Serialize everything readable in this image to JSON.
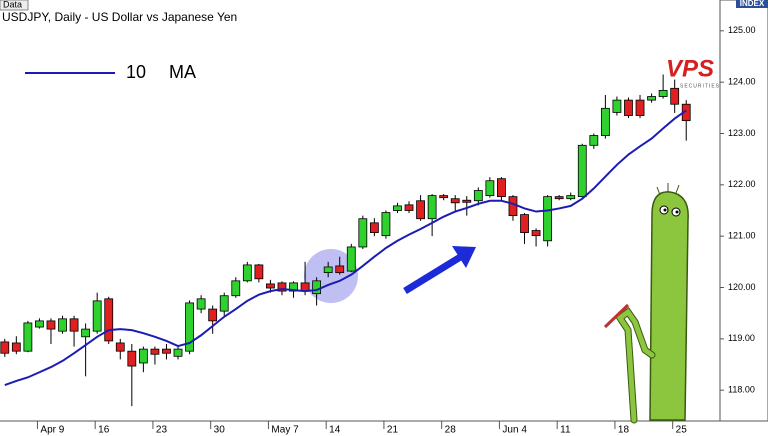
{
  "chart_data": {
    "type": "candlestick",
    "label": "Data",
    "title": "USDJPY, Daily - US Dollar vs Japanese Yen",
    "axis_label": "INDEX",
    "categories": [
      null,
      null,
      null,
      "Apr 9",
      null,
      null,
      null,
      null,
      "16",
      null,
      null,
      null,
      null,
      "23",
      null,
      null,
      null,
      null,
      "30",
      null,
      null,
      null,
      null,
      "May 7",
      null,
      null,
      null,
      null,
      "14",
      null,
      null,
      null,
      null,
      "21",
      null,
      null,
      null,
      null,
      "28",
      null,
      null,
      null,
      null,
      "Jun 4",
      null,
      null,
      null,
      null,
      "11",
      null,
      null,
      null,
      null,
      "18",
      null,
      null,
      null,
      null,
      "25",
      null
    ],
    "open": [
      118.94,
      118.92,
      118.76,
      119.23,
      119.35,
      119.15,
      119.39,
      119.04,
      119.15,
      119.78,
      118.92,
      118.76,
      118.53,
      118.8,
      118.8,
      118.66,
      118.76,
      119.58,
      119.58,
      119.54,
      119.84,
      120.13,
      120.44,
      120.07,
      120.09,
      119.93,
      120.09,
      119.88,
      120.29,
      120.42,
      120.32,
      120.79,
      121.26,
      121.01,
      121.5,
      121.61,
      121.69,
      121.34,
      121.79,
      121.73,
      121.7,
      121.69,
      121.79,
      122.12,
      121.77,
      121.42,
      121.11,
      120.91,
      121.77,
      121.73,
      121.77,
      122.77,
      122.96,
      123.41,
      123.65,
      123.65,
      123.65,
      123.72,
      123.88,
      123.57
    ],
    "high": [
      119.0,
      119.05,
      119.35,
      119.4,
      119.4,
      119.45,
      119.45,
      119.3,
      119.9,
      119.82,
      119.0,
      118.9,
      118.85,
      118.85,
      118.9,
      118.85,
      119.75,
      119.85,
      119.65,
      119.9,
      120.2,
      120.5,
      120.46,
      120.15,
      120.12,
      120.12,
      120.5,
      120.2,
      120.5,
      120.6,
      120.85,
      121.4,
      121.35,
      121.5,
      121.65,
      121.68,
      121.8,
      121.82,
      121.82,
      121.8,
      121.78,
      121.95,
      122.15,
      122.15,
      121.8,
      121.45,
      121.15,
      121.8,
      121.8,
      121.85,
      122.8,
      123.0,
      123.75,
      123.72,
      123.7,
      123.75,
      123.78,
      124.15,
      124.05,
      123.65
    ],
    "low": [
      118.65,
      118.7,
      118.74,
      119.2,
      118.9,
      119.1,
      118.85,
      118.27,
      119.1,
      118.9,
      118.6,
      117.69,
      118.35,
      118.5,
      118.6,
      118.6,
      118.7,
      119.5,
      119.1,
      119.45,
      119.8,
      120.1,
      120.1,
      119.9,
      119.85,
      119.8,
      119.85,
      119.65,
      120.2,
      120.25,
      120.3,
      120.75,
      121.0,
      120.95,
      121.45,
      121.45,
      121.3,
      121.0,
      121.7,
      121.5,
      121.4,
      121.6,
      121.75,
      121.7,
      121.3,
      120.85,
      120.8,
      120.8,
      121.7,
      121.7,
      121.75,
      122.7,
      122.9,
      123.35,
      123.3,
      123.3,
      123.6,
      123.68,
      123.4,
      122.86
    ],
    "close": [
      118.72,
      118.76,
      119.31,
      119.35,
      119.19,
      119.39,
      119.15,
      119.19,
      119.74,
      118.96,
      118.76,
      118.47,
      118.8,
      118.7,
      118.72,
      118.8,
      119.7,
      119.78,
      119.35,
      119.84,
      120.13,
      120.44,
      120.17,
      119.99,
      119.93,
      120.09,
      119.93,
      120.13,
      120.4,
      120.29,
      120.79,
      121.34,
      121.07,
      121.46,
      121.59,
      121.5,
      121.34,
      121.79,
      121.75,
      121.65,
      121.66,
      121.89,
      122.08,
      121.77,
      121.4,
      121.07,
      121.01,
      121.77,
      121.73,
      121.79,
      122.77,
      122.96,
      123.49,
      123.65,
      123.35,
      123.35,
      123.72,
      123.84,
      123.57,
      123.25
    ],
    "up_color": "#2ed12e",
    "down_color": "#e02020",
    "series": [
      {
        "name": "10 MA",
        "color": "#1c1cb4",
        "values": [
          118.1,
          118.18,
          118.25,
          118.35,
          118.45,
          118.57,
          118.72,
          118.88,
          119.04,
          119.17,
          119.19,
          119.17,
          119.11,
          119.04,
          118.96,
          118.86,
          118.92,
          119.07,
          119.25,
          119.43,
          119.58,
          119.74,
          119.86,
          119.93,
          119.97,
          119.95,
          119.93,
          119.95,
          120.05,
          120.13,
          120.25,
          120.42,
          120.6,
          120.77,
          120.91,
          121.03,
          121.14,
          121.26,
          121.38,
          121.48,
          121.55,
          121.63,
          121.69,
          121.69,
          121.63,
          121.54,
          121.48,
          121.5,
          121.54,
          121.59,
          121.73,
          121.93,
          122.16,
          122.39,
          122.59,
          122.75,
          122.9,
          123.1,
          123.29,
          123.45
        ]
      }
    ],
    "ylim": [
      117.4,
      125.6
    ],
    "yticks": [
      {
        "value": 118,
        "label": "118.00"
      },
      {
        "value": 119,
        "label": "119.00"
      },
      {
        "value": 120,
        "label": "120.00"
      },
      {
        "value": 121,
        "label": "121.00"
      },
      {
        "value": 122,
        "label": "122.00"
      },
      {
        "value": 123,
        "label": "123.00"
      },
      {
        "value": 124,
        "label": "124.00"
      },
      {
        "value": 125,
        "label": "125.00"
      }
    ],
    "grid": false
  },
  "logo": {
    "text": "VPS",
    "subtext": "SECURITIES"
  }
}
